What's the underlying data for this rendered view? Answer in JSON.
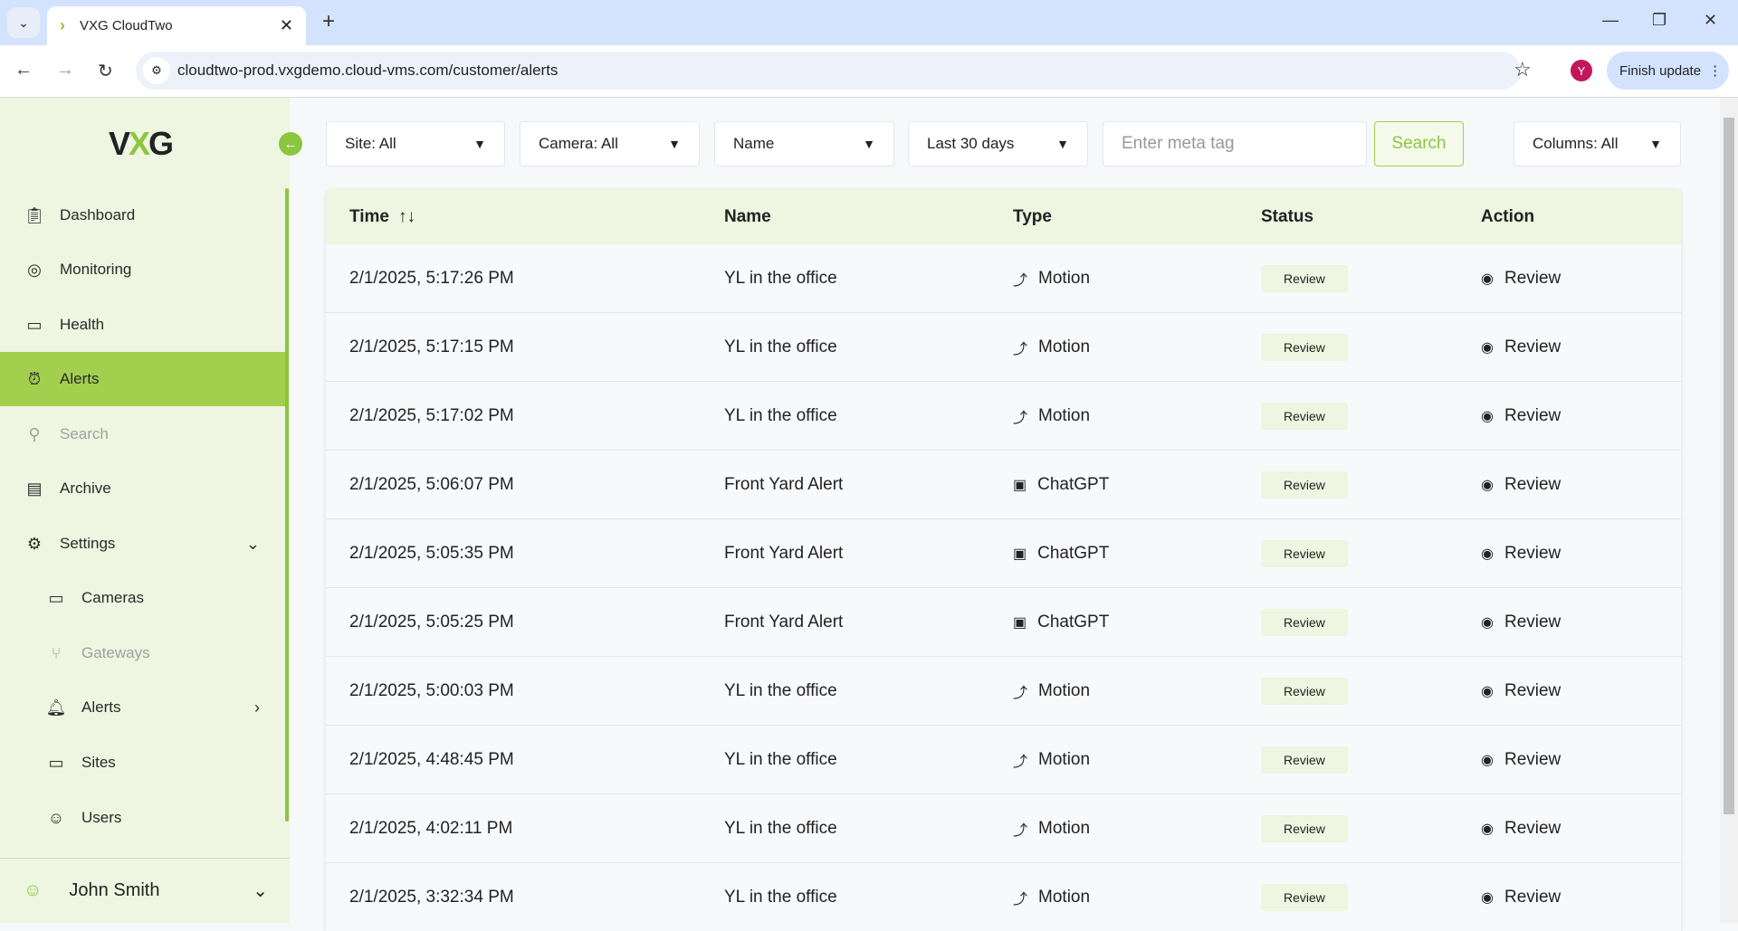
{
  "browser": {
    "tab_title": "VXG CloudTwo",
    "url": "cloudtwo-prod.vxgdemo.cloud-vms.com/customer/alerts",
    "profile_initial": "Y",
    "update_label": "Finish update"
  },
  "sidebar": {
    "logo": "VXG",
    "items": [
      {
        "label": "Dashboard",
        "icon": "clipboard-icon"
      },
      {
        "label": "Monitoring",
        "icon": "webcam-icon"
      },
      {
        "label": "Health",
        "icon": "monitor-icon"
      },
      {
        "label": "Alerts",
        "icon": "alarm-icon",
        "active": true
      },
      {
        "label": "Search",
        "icon": "search-icon",
        "disabled": true
      },
      {
        "label": "Archive",
        "icon": "archive-icon"
      },
      {
        "label": "Settings",
        "icon": "gear-icon",
        "expanded": true
      }
    ],
    "sub_items": [
      {
        "label": "Cameras",
        "icon": "camera-icon"
      },
      {
        "label": "Gateways",
        "icon": "gateway-icon",
        "disabled": true
      },
      {
        "label": "Alerts",
        "icon": "bell-icon"
      },
      {
        "label": "Sites",
        "icon": "browser-icon"
      },
      {
        "label": "Users",
        "icon": "user-icon"
      }
    ],
    "user": "John Smith"
  },
  "filters": {
    "site": "Site: All",
    "camera": "Camera: All",
    "name": "Name",
    "period": "Last 30 days",
    "meta_placeholder": "Enter meta tag",
    "search": "Search",
    "columns": "Columns: All"
  },
  "table": {
    "headers": [
      "Time",
      "Name",
      "Type",
      "Status",
      "Action"
    ],
    "rows": [
      {
        "time": "2/1/2025, 5:17:26 PM",
        "name": "YL in the office",
        "type": "Motion",
        "status": "Review",
        "action": "Review"
      },
      {
        "time": "2/1/2025, 5:17:15 PM",
        "name": "YL in the office",
        "type": "Motion",
        "status": "Review",
        "action": "Review"
      },
      {
        "time": "2/1/2025, 5:17:02 PM",
        "name": "YL in the office",
        "type": "Motion",
        "status": "Review",
        "action": "Review"
      },
      {
        "time": "2/1/2025, 5:06:07 PM",
        "name": "Front Yard Alert",
        "type": "ChatGPT",
        "status": "Review",
        "action": "Review"
      },
      {
        "time": "2/1/2025, 5:05:35 PM",
        "name": "Front Yard Alert",
        "type": "ChatGPT",
        "status": "Review",
        "action": "Review"
      },
      {
        "time": "2/1/2025, 5:05:25 PM",
        "name": "Front Yard Alert",
        "type": "ChatGPT",
        "status": "Review",
        "action": "Review"
      },
      {
        "time": "2/1/2025, 5:00:03 PM",
        "name": "YL in the office",
        "type": "Motion",
        "status": "Review",
        "action": "Review"
      },
      {
        "time": "2/1/2025, 4:48:45 PM",
        "name": "YL in the office",
        "type": "Motion",
        "status": "Review",
        "action": "Review"
      },
      {
        "time": "2/1/2025, 4:02:11 PM",
        "name": "YL in the office",
        "type": "Motion",
        "status": "Review",
        "action": "Review"
      },
      {
        "time": "2/1/2025, 3:32:34 PM",
        "name": "YL in the office",
        "type": "Motion",
        "status": "Review",
        "action": "Review"
      }
    ]
  },
  "colors": {
    "accent": "#a3cf4f",
    "sidebar_bg": "#eef5e0"
  }
}
